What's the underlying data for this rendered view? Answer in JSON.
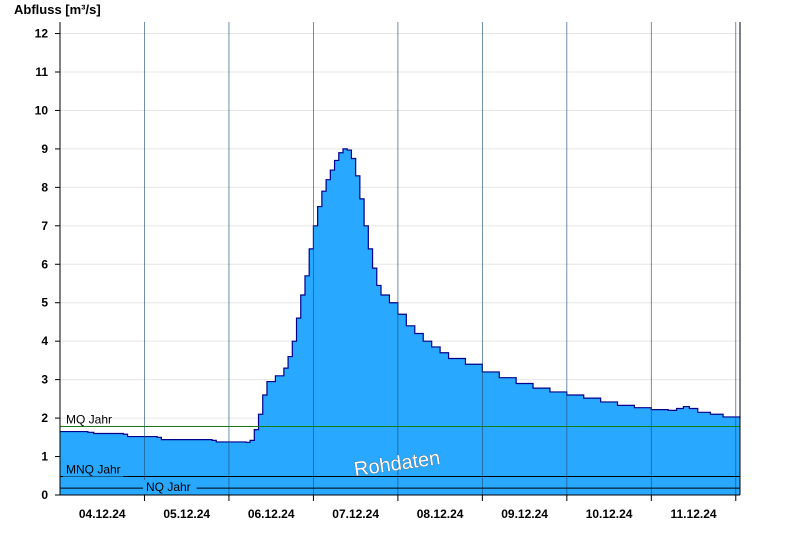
{
  "chart_data": {
    "type": "area",
    "ylabel": "Abfluss [m³/s]",
    "ylim": [
      0,
      12.3
    ],
    "y_ticks": [
      "0",
      "1",
      "2",
      "3",
      "4",
      "5",
      "6",
      "7",
      "8",
      "9",
      "10",
      "11",
      "12"
    ],
    "x_tick_labels": [
      "04.12.24",
      "05.12.24",
      "06.12.24",
      "07.12.24",
      "08.12.24",
      "09.12.24",
      "10.12.24",
      "11.12.24"
    ],
    "x_range_days": [
      0,
      8.05
    ],
    "grid": "horizontal",
    "series": [
      {
        "color": "#28a8ff",
        "line_color": "#00008b",
        "points": [
          [
            0.0,
            1.65
          ],
          [
            0.33,
            1.63
          ],
          [
            0.4,
            1.6
          ],
          [
            0.75,
            1.58
          ],
          [
            0.8,
            1.52
          ],
          [
            1.15,
            1.5
          ],
          [
            1.2,
            1.44
          ],
          [
            1.8,
            1.42
          ],
          [
            1.85,
            1.38
          ],
          [
            2.2,
            1.37
          ],
          [
            2.25,
            1.42
          ],
          [
            2.3,
            1.7
          ],
          [
            2.35,
            2.1
          ],
          [
            2.4,
            2.6
          ],
          [
            2.45,
            2.95
          ],
          [
            2.55,
            3.1
          ],
          [
            2.65,
            3.3
          ],
          [
            2.7,
            3.6
          ],
          [
            2.75,
            4.0
          ],
          [
            2.8,
            4.6
          ],
          [
            2.85,
            5.2
          ],
          [
            2.9,
            5.7
          ],
          [
            2.95,
            6.4
          ],
          [
            3.0,
            7.0
          ],
          [
            3.05,
            7.5
          ],
          [
            3.1,
            7.9
          ],
          [
            3.15,
            8.2
          ],
          [
            3.2,
            8.45
          ],
          [
            3.25,
            8.7
          ],
          [
            3.3,
            8.9
          ],
          [
            3.35,
            9.0
          ],
          [
            3.4,
            8.97
          ],
          [
            3.45,
            8.75
          ],
          [
            3.5,
            8.3
          ],
          [
            3.55,
            7.7
          ],
          [
            3.6,
            7.0
          ],
          [
            3.65,
            6.4
          ],
          [
            3.7,
            5.9
          ],
          [
            3.75,
            5.45
          ],
          [
            3.8,
            5.2
          ],
          [
            3.9,
            5.0
          ],
          [
            4.0,
            4.7
          ],
          [
            4.1,
            4.4
          ],
          [
            4.2,
            4.2
          ],
          [
            4.3,
            4.0
          ],
          [
            4.4,
            3.85
          ],
          [
            4.5,
            3.7
          ],
          [
            4.6,
            3.55
          ],
          [
            4.8,
            3.4
          ],
          [
            5.0,
            3.2
          ],
          [
            5.2,
            3.05
          ],
          [
            5.4,
            2.9
          ],
          [
            5.6,
            2.78
          ],
          [
            5.8,
            2.68
          ],
          [
            6.0,
            2.6
          ],
          [
            6.2,
            2.52
          ],
          [
            6.4,
            2.42
          ],
          [
            6.6,
            2.33
          ],
          [
            6.8,
            2.27
          ],
          [
            7.0,
            2.22
          ],
          [
            7.2,
            2.2
          ],
          [
            7.3,
            2.25
          ],
          [
            7.38,
            2.3
          ],
          [
            7.45,
            2.25
          ],
          [
            7.55,
            2.15
          ],
          [
            7.7,
            2.1
          ],
          [
            7.85,
            2.03
          ],
          [
            8.05,
            1.98
          ]
        ]
      }
    ],
    "reference_lines": [
      {
        "label": "MQ Jahr",
        "value": 1.78,
        "color": "#1a7a1a"
      },
      {
        "label": "MNQ Jahr",
        "value": 0.48,
        "color": "#000000"
      },
      {
        "label": "NQ Jahr",
        "value": 0.18,
        "color": "#000000"
      }
    ],
    "annotation": "Rohdaten"
  }
}
